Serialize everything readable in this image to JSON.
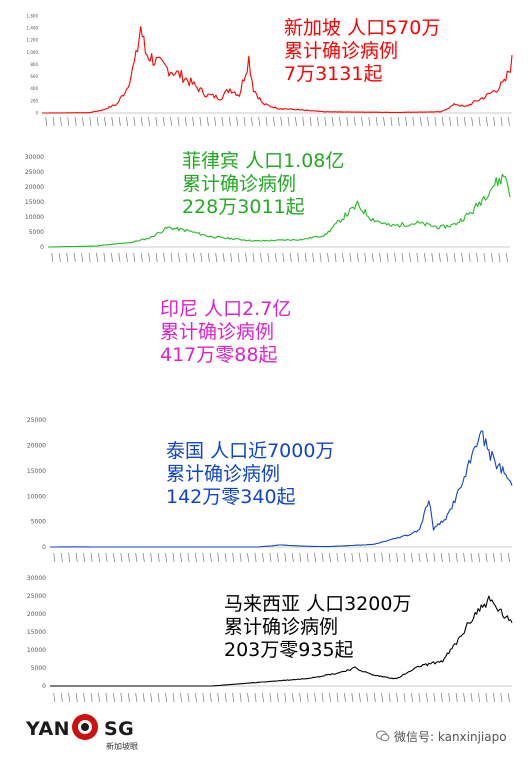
{
  "chart_data": [
    {
      "type": "line",
      "country": "新加坡",
      "population": "人口570万",
      "label": "累计确诊病例",
      "total": "7万3131起",
      "color": "#ff0000",
      "ylim": [
        0,
        1600
      ],
      "yticks": [
        0,
        200,
        400,
        600,
        800,
        1000,
        1200,
        1400,
        1600
      ],
      "ytick_labels": [
        "0",
        "200",
        "400",
        "600",
        "800",
        "1,000",
        "1,200",
        "1,400",
        "1,600"
      ],
      "keypoints": [
        [
          0,
          0
        ],
        [
          0.1,
          5
        ],
        [
          0.13,
          50
        ],
        [
          0.16,
          150
        ],
        [
          0.18,
          400
        ],
        [
          0.2,
          900
        ],
        [
          0.21,
          1426
        ],
        [
          0.22,
          1000
        ],
        [
          0.25,
          800
        ],
        [
          0.3,
          600
        ],
        [
          0.35,
          300
        ],
        [
          0.38,
          250
        ],
        [
          0.4,
          400
        ],
        [
          0.42,
          300
        ],
        [
          0.44,
          900
        ],
        [
          0.45,
          400
        ],
        [
          0.47,
          150
        ],
        [
          0.5,
          80
        ],
        [
          0.6,
          20
        ],
        [
          0.75,
          10
        ],
        [
          0.85,
          20
        ],
        [
          0.88,
          150
        ],
        [
          0.9,
          100
        ],
        [
          0.95,
          300
        ],
        [
          0.985,
          500
        ],
        [
          1.0,
          850
        ]
      ]
    },
    {
      "type": "line",
      "country": "菲律宾",
      "population": "人口1.08亿",
      "label": "累计确诊病例",
      "total": "228万3011起",
      "color": "#22bb22",
      "ylim": [
        0,
        30000
      ],
      "yticks": [
        0,
        5000,
        10000,
        15000,
        20000,
        25000,
        30000
      ],
      "ytick_labels": [
        "0",
        "5000",
        "10000",
        "15000",
        "20000",
        "25000",
        "30000"
      ],
      "keypoints": [
        [
          0,
          0
        ],
        [
          0.1,
          300
        ],
        [
          0.18,
          1500
        ],
        [
          0.22,
          3000
        ],
        [
          0.26,
          6500
        ],
        [
          0.3,
          5500
        ],
        [
          0.35,
          3500
        ],
        [
          0.45,
          2000
        ],
        [
          0.55,
          2500
        ],
        [
          0.6,
          4000
        ],
        [
          0.64,
          10000
        ],
        [
          0.67,
          14000
        ],
        [
          0.7,
          9500
        ],
        [
          0.74,
          7000
        ],
        [
          0.8,
          8000
        ],
        [
          0.85,
          6500
        ],
        [
          0.88,
          7500
        ],
        [
          0.92,
          12000
        ],
        [
          0.96,
          20000
        ],
        [
          0.99,
          24000
        ],
        [
          1.0,
          18000
        ]
      ]
    },
    {
      "type": "text-only",
      "country": "印尼",
      "population": "人口2.7亿",
      "label": "累计确诊病例",
      "total": "417万零88起",
      "color": "#dd22cc"
    },
    {
      "type": "line",
      "country": "泰国",
      "population": "人口近7000万",
      "label": "累计确诊病例",
      "total": "142万零340起",
      "color": "#1144cc",
      "ylim": [
        0,
        25000
      ],
      "yticks": [
        0,
        5000,
        10000,
        15000,
        20000,
        25000
      ],
      "ytick_labels": [
        "0",
        "5000",
        "10000",
        "15000",
        "20000",
        "25000"
      ],
      "keypoints": [
        [
          0,
          0
        ],
        [
          0.05,
          30
        ],
        [
          0.1,
          0
        ],
        [
          0.45,
          0
        ],
        [
          0.5,
          400
        ],
        [
          0.55,
          150
        ],
        [
          0.6,
          80
        ],
        [
          0.7,
          500
        ],
        [
          0.78,
          2500
        ],
        [
          0.8,
          3500
        ],
        [
          0.82,
          9500
        ],
        [
          0.83,
          3500
        ],
        [
          0.86,
          6000
        ],
        [
          0.9,
          14000
        ],
        [
          0.93,
          22800
        ],
        [
          0.96,
          17000
        ],
        [
          0.985,
          14500
        ],
        [
          1.0,
          12000
        ]
      ]
    },
    {
      "type": "line",
      "country": "马来西亚",
      "population": "人口3200万",
      "label": "累计确诊病例",
      "total": "203万零935起",
      "color": "#000000",
      "ylim": [
        0,
        30000
      ],
      "yticks": [
        0,
        5000,
        10000,
        15000,
        20000,
        25000,
        30000
      ],
      "ytick_labels": [
        "0",
        "5000",
        "10000",
        "15000",
        "20000",
        "25000",
        "30000"
      ],
      "keypoints": [
        [
          0,
          0
        ],
        [
          0.35,
          0
        ],
        [
          0.45,
          1000
        ],
        [
          0.55,
          2000
        ],
        [
          0.62,
          3500
        ],
        [
          0.66,
          5000
        ],
        [
          0.7,
          3000
        ],
        [
          0.75,
          2000
        ],
        [
          0.8,
          5500
        ],
        [
          0.85,
          7000
        ],
        [
          0.88,
          12000
        ],
        [
          0.92,
          20000
        ],
        [
          0.95,
          24000
        ],
        [
          0.98,
          20000
        ],
        [
          1.0,
          17000
        ]
      ]
    }
  ],
  "watermark": {
    "logo_left": "YAN",
    "logo_right": "SG",
    "logo_sub": "新加坡眼",
    "wechat_label": "微信号: kanxinjiapo"
  }
}
